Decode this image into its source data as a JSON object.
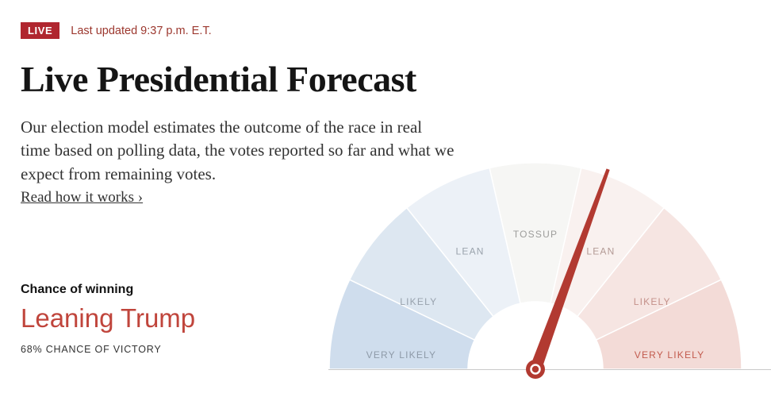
{
  "page": {
    "live_badge": "LIVE",
    "last_updated": "Last updated 9:37 p.m. E.T.",
    "title": "Live Presidential Forecast",
    "intro": "Our election model estimates the outcome of the race in real time based on polling data, the votes reported so far and what we expect from remaining votes.",
    "link": "Read how it works ›"
  },
  "result": {
    "label": "Chance of winning",
    "value": "Leaning Trump",
    "value_color": "#c0453c",
    "detail": "68% CHANCE OF VICTORY"
  },
  "chart_data": {
    "type": "gauge",
    "description": "Semicircular election forecast dial; red needle points into the Trump LEAN region, reflecting a 68% Trump chance of victory",
    "segments": [
      {
        "label": "VERY LIKELY",
        "side": "dem",
        "fill": "#cfdded",
        "label_color": "#8e9aa8"
      },
      {
        "label": "LIKELY",
        "side": "dem",
        "fill": "#dde7f1",
        "label_color": "#98a2ad"
      },
      {
        "label": "LEAN",
        "side": "dem",
        "fill": "#ecf1f7",
        "label_color": "#9aa3ac"
      },
      {
        "label": "TOSSUP",
        "side": "center",
        "fill": "#f6f6f4",
        "label_color": "#9d9d9b"
      },
      {
        "label": "LEAN",
        "side": "rep",
        "fill": "#f9f1ef",
        "label_color": "#b39a95"
      },
      {
        "label": "LIKELY",
        "side": "rep",
        "fill": "#f6e5e2",
        "label_color": "#c4918a"
      },
      {
        "label": "VERY LIKELY",
        "side": "rep",
        "fill": "#f3dbd7",
        "label_color": "#c25b4e"
      }
    ],
    "range": {
      "start_deg": 180,
      "end_deg": 0
    },
    "needle": {
      "value_pct_trump": 68,
      "angle_deg": 70,
      "color": "#b23a31"
    }
  },
  "colors": {
    "badge_bg": "#b0262f",
    "updated_text": "#9c372e",
    "baseline": "#c9c9c9"
  }
}
